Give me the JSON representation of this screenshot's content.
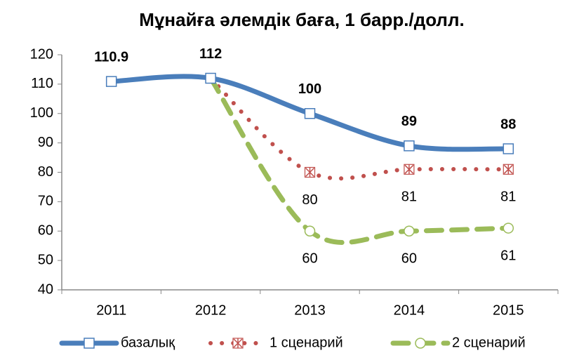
{
  "chart_data": {
    "type": "line",
    "title": "Мұнайға әлемдік баға, 1 барр./долл.",
    "categories": [
      "2011",
      "2012",
      "2013",
      "2014",
      "2015"
    ],
    "series": [
      {
        "name": "базалық",
        "color": "#4a7ebb",
        "values": [
          110.9,
          112,
          100,
          89,
          88
        ]
      },
      {
        "name": "1 сценарий",
        "color": "#c0504d",
        "values": [
          null,
          112,
          80,
          81,
          81
        ]
      },
      {
        "name": "2 сценарий",
        "color": "#9bbb59",
        "values": [
          null,
          112,
          60,
          60,
          61
        ]
      }
    ],
    "ylim": [
      40,
      120
    ],
    "yticks": [
      40,
      50,
      60,
      70,
      80,
      90,
      100,
      110,
      120
    ],
    "legend": "bottom"
  }
}
